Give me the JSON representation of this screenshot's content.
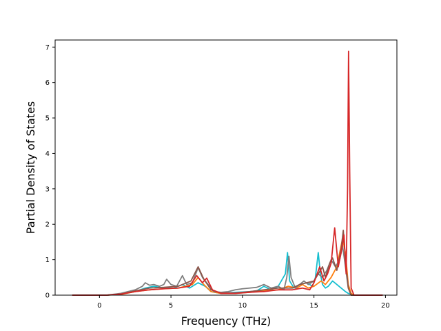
{
  "chart_data": {
    "type": "line",
    "title": "",
    "xlabel": "Frequency (THz)",
    "ylabel": "Partial Density of States",
    "xlim": [
      -3.1,
      20.8
    ],
    "ylim": [
      0,
      7.2
    ],
    "xticks": [
      0,
      5,
      10,
      15,
      20
    ],
    "yticks": [
      0,
      1,
      2,
      3,
      4,
      5,
      6,
      7
    ],
    "grid": false,
    "legend": "none",
    "series": [
      {
        "color": "#17becf",
        "x": [
          -1.9,
          0.5,
          1.5,
          2.5,
          3.2,
          3.8,
          4.5,
          5.2,
          5.8,
          6.3,
          6.9,
          7.4,
          7.8,
          8.5,
          9.5,
          10.5,
          11.0,
          11.5,
          12.0,
          12.5,
          13.0,
          13.15,
          13.3,
          13.6,
          14.0,
          14.5,
          14.9,
          15.1,
          15.3,
          15.45,
          15.6,
          15.8,
          16.0,
          16.3,
          16.6,
          16.9,
          17.2,
          17.4,
          17.6,
          17.8,
          19.8
        ],
        "y": [
          0,
          0,
          0.03,
          0.1,
          0.2,
          0.25,
          0.2,
          0.2,
          0.3,
          0.2,
          0.35,
          0.25,
          0.1,
          0.05,
          0.08,
          0.1,
          0.12,
          0.25,
          0.15,
          0.25,
          0.6,
          1.2,
          0.4,
          0.2,
          0.3,
          0.35,
          0.25,
          0.5,
          1.2,
          0.6,
          0.3,
          0.2,
          0.25,
          0.4,
          0.3,
          0.2,
          0.1,
          0.05,
          0.02,
          0,
          0
        ]
      },
      {
        "color": "#ff7f0e",
        "x": [
          -1.9,
          0.5,
          1.5,
          2.5,
          3.5,
          4.5,
          5.5,
          6.5,
          6.9,
          7.3,
          7.8,
          8.5,
          9.5,
          10.5,
          11.5,
          12.5,
          13.2,
          13.8,
          14.2,
          14.6,
          15.0,
          15.5,
          15.8,
          16.2,
          16.6,
          16.8,
          17.0,
          17.2,
          17.4,
          17.6,
          17.8,
          19.8
        ],
        "y": [
          0,
          0,
          0.02,
          0.1,
          0.15,
          0.18,
          0.2,
          0.3,
          0.5,
          0.3,
          0.1,
          0.05,
          0.05,
          0.08,
          0.12,
          0.15,
          0.25,
          0.2,
          0.3,
          0.2,
          0.25,
          0.4,
          0.3,
          0.5,
          0.8,
          1.2,
          1.6,
          1.2,
          0.3,
          0.05,
          0,
          0
        ]
      },
      {
        "color": "#7f7f7f",
        "x": [
          -1.9,
          0.5,
          1.5,
          2.5,
          3.0,
          3.2,
          3.5,
          3.8,
          4.2,
          4.5,
          4.7,
          5.0,
          5.4,
          5.8,
          6.1,
          6.5,
          6.9,
          7.2,
          7.6,
          8.0,
          8.5,
          9.0,
          9.5,
          10.0,
          10.5,
          11.0,
          11.5,
          12.0,
          12.5,
          12.9,
          13.1,
          13.25,
          13.4,
          13.7,
          14.0,
          14.3,
          14.6,
          15.0,
          15.3,
          15.6,
          15.9,
          16.2,
          16.5,
          16.8,
          17.0,
          17.2,
          17.4,
          17.6,
          19.8
        ],
        "y": [
          0,
          0,
          0.05,
          0.15,
          0.25,
          0.35,
          0.28,
          0.3,
          0.25,
          0.3,
          0.45,
          0.3,
          0.25,
          0.55,
          0.3,
          0.35,
          0.78,
          0.5,
          0.3,
          0.1,
          0.08,
          0.1,
          0.15,
          0.18,
          0.2,
          0.22,
          0.3,
          0.2,
          0.25,
          0.15,
          0.5,
          1.1,
          0.5,
          0.2,
          0.3,
          0.4,
          0.3,
          0.4,
          0.6,
          0.5,
          0.7,
          1.0,
          0.8,
          1.0,
          1.4,
          0.8,
          0.2,
          0,
          0
        ]
      },
      {
        "color": "#8c564b",
        "x": [
          -1.9,
          0.5,
          1.5,
          2.5,
          3.5,
          4.5,
          5.5,
          6.4,
          6.9,
          7.3,
          7.8,
          8.5,
          9.5,
          10.5,
          11.5,
          12.5,
          13.5,
          14.0,
          14.5,
          15.0,
          15.3,
          15.6,
          15.8,
          16.1,
          16.3,
          16.6,
          16.9,
          17.05,
          17.2,
          17.4,
          17.6,
          19.8
        ],
        "y": [
          0,
          0,
          0.03,
          0.12,
          0.2,
          0.22,
          0.25,
          0.4,
          0.8,
          0.45,
          0.15,
          0.06,
          0.06,
          0.1,
          0.15,
          0.2,
          0.2,
          0.3,
          0.35,
          0.4,
          0.6,
          0.8,
          0.5,
          0.9,
          1.05,
          0.7,
          1.3,
          1.83,
          1.0,
          0.2,
          0,
          0
        ]
      },
      {
        "color": "#d62728",
        "x": [
          -1.9,
          0.5,
          1.5,
          2.5,
          3.5,
          4.5,
          5.5,
          6.3,
          6.8,
          7.2,
          7.5,
          7.9,
          8.5,
          9.5,
          10.5,
          11.5,
          12.5,
          13.5,
          14.2,
          14.7,
          15.0,
          15.4,
          15.7,
          15.95,
          16.2,
          16.45,
          16.7,
          16.9,
          17.1,
          17.25,
          17.35,
          17.42,
          17.5,
          17.6,
          17.8,
          19.8
        ],
        "y": [
          0,
          0,
          0.03,
          0.1,
          0.15,
          0.18,
          0.2,
          0.25,
          0.55,
          0.35,
          0.48,
          0.15,
          0.05,
          0.05,
          0.08,
          0.1,
          0.15,
          0.15,
          0.2,
          0.15,
          0.35,
          0.8,
          0.4,
          0.6,
          0.9,
          1.9,
          0.8,
          1.2,
          1.7,
          0.6,
          3.0,
          6.88,
          3.5,
          0.2,
          0,
          0
        ]
      }
    ]
  }
}
